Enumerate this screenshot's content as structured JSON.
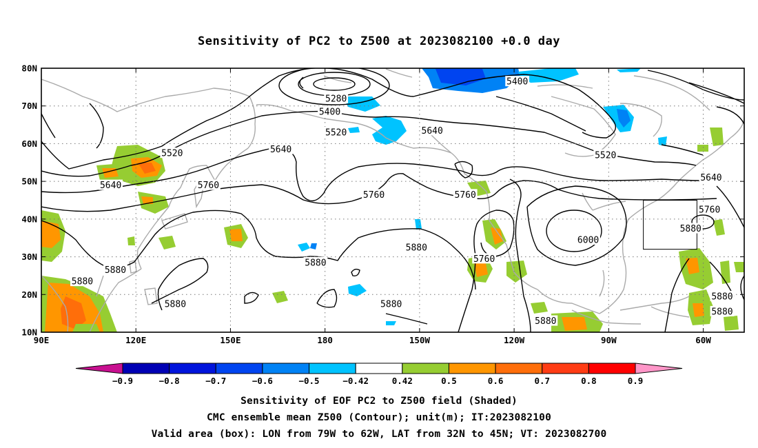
{
  "title": "Sensitivity of PC2 to Z500 at 2023082100 +0.0 day",
  "map": {
    "lat_ticks": [
      "80N",
      "70N",
      "60N",
      "50N",
      "40N",
      "30N",
      "20N",
      "10N"
    ],
    "lon_ticks": [
      "90E",
      "120E",
      "150E",
      "180",
      "150W",
      "120W",
      "90W",
      "60W"
    ],
    "lon_range": [
      90,
      313
    ],
    "lat_range": [
      10,
      80
    ],
    "valid_box": {
      "lon_from": "79W",
      "lon_to": "62W",
      "lat_from": "32N",
      "lat_to": "45N"
    },
    "contour_labels": [
      {
        "text": "5400",
        "lon": 241,
        "lat": 76.5
      },
      {
        "text": "5280",
        "lon": 183.5,
        "lat": 72
      },
      {
        "text": "5400",
        "lon": 181.5,
        "lat": 68.5
      },
      {
        "text": "5520",
        "lon": 183.5,
        "lat": 63
      },
      {
        "text": "5640",
        "lon": 214,
        "lat": 63.5
      },
      {
        "text": "5640",
        "lon": 166,
        "lat": 58.5
      },
      {
        "text": "5520",
        "lon": 131.5,
        "lat": 57.5
      },
      {
        "text": "5520",
        "lon": 269,
        "lat": 57
      },
      {
        "text": "5640",
        "lon": 112,
        "lat": 49
      },
      {
        "text": "5760",
        "lon": 143,
        "lat": 49
      },
      {
        "text": "5760",
        "lon": 195.5,
        "lat": 46.5
      },
      {
        "text": "5760",
        "lon": 224.5,
        "lat": 46.5
      },
      {
        "text": "5640",
        "lon": 302.5,
        "lat": 51
      },
      {
        "text": "5760",
        "lon": 302,
        "lat": 42.5
      },
      {
        "text": "5880",
        "lon": 296,
        "lat": 37.5
      },
      {
        "text": "6000",
        "lon": 263.5,
        "lat": 34.5
      },
      {
        "text": "5880",
        "lon": 209,
        "lat": 32.5
      },
      {
        "text": "5760",
        "lon": 230.5,
        "lat": 29.5
      },
      {
        "text": "5880",
        "lon": 177,
        "lat": 28.5
      },
      {
        "text": "5880",
        "lon": 113.5,
        "lat": 26.5
      },
      {
        "text": "5880",
        "lon": 103,
        "lat": 23.5
      },
      {
        "text": "5880",
        "lon": 132.5,
        "lat": 17.5
      },
      {
        "text": "5880",
        "lon": 201,
        "lat": 17.5
      },
      {
        "text": "5880",
        "lon": 306,
        "lat": 19.5
      },
      {
        "text": "5880",
        "lon": 306,
        "lat": 15.5
      },
      {
        "text": "5880",
        "lon": 250,
        "lat": 13
      }
    ]
  },
  "colorbar": {
    "labels": [
      "−0.9",
      "−0.8",
      "−0.7",
      "−0.6",
      "−0.5",
      "−0.42",
      "0.42",
      "0.5",
      "0.6",
      "0.7",
      "0.8",
      "0.9"
    ],
    "colors": [
      "#c81090",
      "#0000b4",
      "#0014dc",
      "#0044f0",
      "#0082f5",
      "#00c3ff",
      "#ffffff",
      "#96cd32",
      "#ff9600",
      "#ff6e0a",
      "#ff3c14",
      "#ff0000",
      "#ff96c8"
    ]
  },
  "footer": {
    "line1": "Sensitivity of EOF PC2 to Z500 field (Shaded)",
    "line2": "CMC ensemble mean Z500 (Contour); unit(m); IT:2023082100",
    "line3": "Valid area (box): LON from 79W to 62W, LAT from 32N to 45N; VT: 2023082700"
  }
}
